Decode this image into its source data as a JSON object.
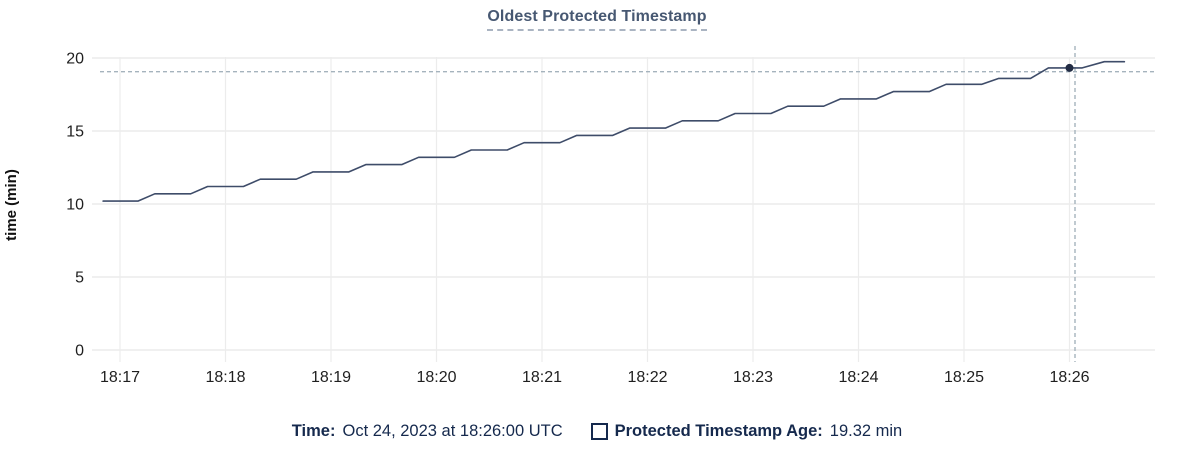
{
  "title": "Oldest Protected Timestamp",
  "y_axis": {
    "label": "time (min)"
  },
  "tooltip": {
    "time_label": "Time:",
    "time_value": "Oct 24, 2023 at 18:26:00 UTC",
    "series_label": "Protected Timestamp Age:",
    "series_value": "19.32 min",
    "swatch_icon": "empty-square-outline"
  },
  "colors": {
    "line": "#3e4c69",
    "dot": "#222c44",
    "crosshair": "#a5b3bd",
    "grid_h": "#e8e8e8",
    "grid_v": "#ececec",
    "tick_text": "#1f1f1f",
    "title_text": "#475872",
    "legend_text": "#15294d",
    "background": "#ffffff"
  },
  "chart_data": {
    "type": "line",
    "title": "Oldest Protected Timestamp",
    "xlabel": "",
    "ylabel": "time (min)",
    "ylim": [
      0,
      20
    ],
    "yticks": [
      0,
      5,
      10,
      15,
      20
    ],
    "xtick_labels": [
      "18:17",
      "18:18",
      "18:19",
      "18:20",
      "18:21",
      "18:22",
      "18:23",
      "18:24",
      "18:25",
      "18:26"
    ],
    "x_unit": "time of day (UTC), minutes after 18:00",
    "grid": true,
    "legend_position": "bottom",
    "series": [
      {
        "name": "Protected Timestamp Age (min)",
        "points": [
          [
            16.84,
            10.2
          ],
          [
            17.17,
            10.2
          ],
          [
            17.33,
            10.7
          ],
          [
            17.67,
            10.7
          ],
          [
            17.83,
            11.2
          ],
          [
            18.17,
            11.2
          ],
          [
            18.33,
            11.7
          ],
          [
            18.67,
            11.7
          ],
          [
            18.83,
            12.2
          ],
          [
            19.17,
            12.2
          ],
          [
            19.33,
            12.7
          ],
          [
            19.67,
            12.7
          ],
          [
            19.83,
            13.2
          ],
          [
            20.17,
            13.2
          ],
          [
            20.33,
            13.7
          ],
          [
            20.67,
            13.7
          ],
          [
            20.83,
            14.2
          ],
          [
            21.17,
            14.2
          ],
          [
            21.33,
            14.7
          ],
          [
            21.67,
            14.7
          ],
          [
            21.83,
            15.2
          ],
          [
            22.17,
            15.2
          ],
          [
            22.33,
            15.7
          ],
          [
            22.67,
            15.7
          ],
          [
            22.83,
            16.2
          ],
          [
            23.17,
            16.2
          ],
          [
            23.33,
            16.7
          ],
          [
            23.67,
            16.7
          ],
          [
            23.83,
            17.2
          ],
          [
            24.17,
            17.2
          ],
          [
            24.33,
            17.7
          ],
          [
            24.67,
            17.7
          ],
          [
            24.83,
            18.2
          ],
          [
            25.17,
            18.2
          ],
          [
            25.33,
            18.6
          ],
          [
            25.63,
            18.6
          ],
          [
            25.8,
            19.32
          ],
          [
            26.12,
            19.32
          ],
          [
            26.33,
            19.75
          ],
          [
            26.52,
            19.75
          ]
        ]
      }
    ],
    "highlight": {
      "x": 26.0,
      "x_time": "18:26:00",
      "y": 19.32,
      "label": "Protected Timestamp Age: 19.32 min at Oct 24, 2023 18:26:00 UTC"
    }
  }
}
